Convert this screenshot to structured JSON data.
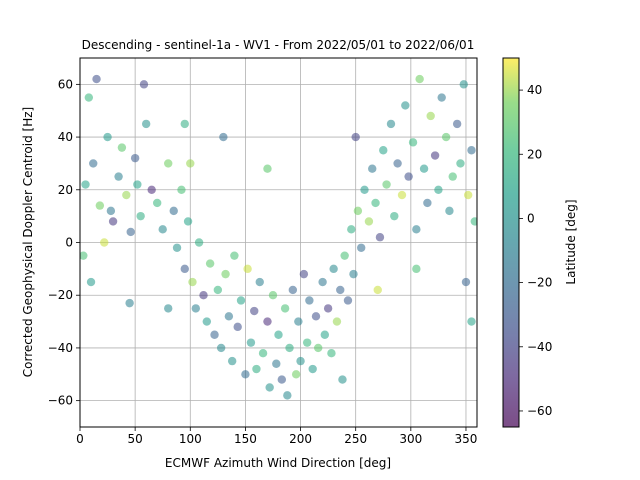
{
  "chart_data": {
    "type": "scatter",
    "title": "Descending - sentinel-1a - WV1 - From 2022/05/01 to 2022/06/01",
    "xlabel": "ECMWF Azimuth Wind Direction [deg]",
    "ylabel": "Corrected Geophysical Doppler Centroid [Hz]",
    "xlim": [
      0,
      360
    ],
    "ylim": [
      -70,
      70
    ],
    "xticks": [
      "0",
      "50",
      "100",
      "150",
      "200",
      "250",
      "300",
      "350"
    ],
    "yticks": [
      "−60",
      "−40",
      "−20",
      "0",
      "20",
      "40",
      "60"
    ],
    "grid": true,
    "colorbar": {
      "label": "Latitude [deg]",
      "range": [
        -65,
        50
      ],
      "ticks": [
        "−60",
        "−40",
        "−20",
        "0",
        "20",
        "40"
      ],
      "colormap": "viridis",
      "alpha": 0.55
    },
    "series": [
      {
        "color_by": "latitude",
        "points": [
          [
            5,
            22,
            10
          ],
          [
            12,
            30,
            -20
          ],
          [
            18,
            14,
            35
          ],
          [
            25,
            40,
            5
          ],
          [
            30,
            8,
            -45
          ],
          [
            8,
            55,
            20
          ],
          [
            35,
            25,
            -10
          ],
          [
            42,
            18,
            40
          ],
          [
            50,
            32,
            -30
          ],
          [
            55,
            10,
            15
          ],
          [
            60,
            45,
            0
          ],
          [
            65,
            20,
            -50
          ],
          [
            3,
            -5,
            25
          ],
          [
            15,
            62,
            -35
          ],
          [
            22,
            0,
            45
          ],
          [
            28,
            12,
            -15
          ],
          [
            38,
            36,
            30
          ],
          [
            46,
            4,
            -25
          ],
          [
            52,
            22,
            10
          ],
          [
            58,
            60,
            -40
          ],
          [
            70,
            15,
            20
          ],
          [
            75,
            5,
            -5
          ],
          [
            80,
            30,
            35
          ],
          [
            85,
            12,
            -20
          ],
          [
            88,
            -2,
            0
          ],
          [
            92,
            20,
            25
          ],
          [
            95,
            -10,
            -30
          ],
          [
            98,
            8,
            10
          ],
          [
            102,
            -15,
            40
          ],
          [
            105,
            -25,
            -10
          ],
          [
            108,
            0,
            15
          ],
          [
            112,
            -20,
            -45
          ],
          [
            115,
            -30,
            5
          ],
          [
            118,
            -8,
            30
          ],
          [
            122,
            -35,
            -25
          ],
          [
            125,
            -18,
            20
          ],
          [
            128,
            -40,
            -5
          ],
          [
            132,
            -12,
            35
          ],
          [
            135,
            -28,
            -15
          ],
          [
            138,
            -45,
            0
          ],
          [
            140,
            -5,
            25
          ],
          [
            143,
            -32,
            -35
          ],
          [
            146,
            -22,
            10
          ],
          [
            150,
            -50,
            -20
          ],
          [
            152,
            -10,
            45
          ],
          [
            155,
            -38,
            5
          ],
          [
            158,
            -26,
            -40
          ],
          [
            160,
            -48,
            15
          ],
          [
            163,
            -15,
            -10
          ],
          [
            166,
            -42,
            20
          ],
          [
            170,
            -30,
            -50
          ],
          [
            172,
            -55,
            0
          ],
          [
            175,
            -20,
            30
          ],
          [
            178,
            -46,
            -15
          ],
          [
            180,
            -35,
            10
          ],
          [
            183,
            -52,
            -30
          ],
          [
            186,
            -25,
            25
          ],
          [
            188,
            -58,
            -5
          ],
          [
            190,
            -40,
            15
          ],
          [
            193,
            -18,
            -25
          ],
          [
            196,
            -50,
            35
          ],
          [
            198,
            -30,
            -10
          ],
          [
            200,
            -45,
            0
          ],
          [
            203,
            -12,
            -40
          ],
          [
            206,
            -38,
            20
          ],
          [
            208,
            -22,
            -20
          ],
          [
            211,
            -48,
            5
          ],
          [
            214,
            -28,
            -35
          ],
          [
            216,
            -40,
            30
          ],
          [
            220,
            -15,
            -15
          ],
          [
            222,
            -35,
            10
          ],
          [
            225,
            -25,
            -45
          ],
          [
            228,
            -42,
            20
          ],
          [
            230,
            -10,
            -5
          ],
          [
            233,
            -30,
            40
          ],
          [
            236,
            -18,
            -25
          ],
          [
            238,
            -52,
            0
          ],
          [
            240,
            -5,
            25
          ],
          [
            243,
            -22,
            -30
          ],
          [
            246,
            5,
            15
          ],
          [
            248,
            -12,
            -10
          ],
          [
            252,
            12,
            35
          ],
          [
            255,
            -2,
            -20
          ],
          [
            258,
            20,
            5
          ],
          [
            262,
            8,
            40
          ],
          [
            265,
            28,
            -15
          ],
          [
            268,
            15,
            20
          ],
          [
            272,
            2,
            -40
          ],
          [
            275,
            35,
            10
          ],
          [
            278,
            22,
            30
          ],
          [
            282,
            45,
            -5
          ],
          [
            285,
            10,
            15
          ],
          [
            288,
            30,
            -25
          ],
          [
            292,
            18,
            45
          ],
          [
            295,
            52,
            0
          ],
          [
            298,
            25,
            -35
          ],
          [
            302,
            38,
            20
          ],
          [
            305,
            5,
            -10
          ],
          [
            308,
            62,
            35
          ],
          [
            312,
            28,
            5
          ],
          [
            315,
            15,
            -20
          ],
          [
            318,
            48,
            40
          ],
          [
            322,
            33,
            -45
          ],
          [
            325,
            20,
            10
          ],
          [
            328,
            55,
            -15
          ],
          [
            332,
            40,
            30
          ],
          [
            335,
            12,
            -5
          ],
          [
            338,
            25,
            25
          ],
          [
            342,
            45,
            -30
          ],
          [
            345,
            30,
            15
          ],
          [
            348,
            60,
            0
          ],
          [
            352,
            18,
            45
          ],
          [
            355,
            35,
            -20
          ],
          [
            358,
            8,
            20
          ],
          [
            45,
            -23,
            -10
          ],
          [
            10,
            -15,
            5
          ],
          [
            350,
            -15,
            -25
          ],
          [
            355,
            -30,
            10
          ],
          [
            100,
            30,
            40
          ],
          [
            270,
            -18,
            45
          ],
          [
            80,
            -25,
            -5
          ],
          [
            95,
            45,
            15
          ],
          [
            130,
            40,
            -20
          ],
          [
            170,
            28,
            30
          ],
          [
            250,
            40,
            -40
          ],
          [
            305,
            -10,
            25
          ]
        ]
      }
    ]
  }
}
